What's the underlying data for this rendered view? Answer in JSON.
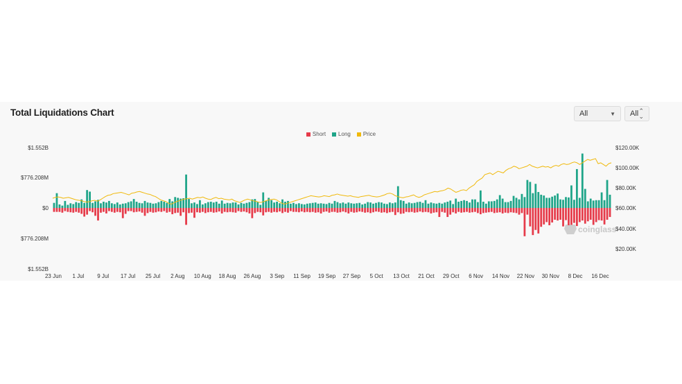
{
  "header": {
    "title": "Total Liquidations Chart",
    "select_range": "All",
    "select_unit": "All"
  },
  "watermark": "coinglass",
  "colors": {
    "short": "#e63b4a",
    "long": "#1fa589",
    "price": "#f0b90b"
  },
  "chart_data": {
    "type": "bar",
    "title": "Total Liquidations Chart",
    "legend": [
      "Short",
      "Long",
      "Price"
    ],
    "legend_position": "top-center",
    "x_tick_labels": [
      "23 Jun",
      "1 Jul",
      "9 Jul",
      "17 Jul",
      "25 Jul",
      "2 Aug",
      "10 Aug",
      "18 Aug",
      "26 Aug",
      "3 Sep",
      "11 Sep",
      "19 Sep",
      "27 Sep",
      "5 Oct",
      "13 Oct",
      "21 Oct",
      "29 Oct",
      "6 Nov",
      "14 Nov",
      "22 Nov",
      "30 Nov",
      "8 Dec",
      "16 Dec"
    ],
    "y_left_tick_labels": [
      "$1.552B",
      "$776.208M",
      "$0",
      "$776.208M",
      "$1.552B"
    ],
    "y_left_range_usd": [
      -1552000000,
      1552000000
    ],
    "y_right_tick_labels": [
      "$120.00K",
      "$100.00K",
      "$80.00K",
      "$60.00K",
      "$40.00K",
      "$20.00K"
    ],
    "y_right_range_usd": [
      0,
      120000
    ],
    "grid": false,
    "series_long_usd": [
      130000000,
      380000000,
      90000000,
      60000000,
      180000000,
      80000000,
      120000000,
      100000000,
      150000000,
      130000000,
      220000000,
      130000000,
      460000000,
      420000000,
      130000000,
      170000000,
      210000000,
      120000000,
      160000000,
      140000000,
      180000000,
      120000000,
      100000000,
      140000000,
      90000000,
      110000000,
      120000000,
      150000000,
      170000000,
      230000000,
      160000000,
      130000000,
      120000000,
      180000000,
      140000000,
      130000000,
      110000000,
      120000000,
      150000000,
      180000000,
      160000000,
      130000000,
      230000000,
      170000000,
      280000000,
      260000000,
      240000000,
      250000000,
      860000000,
      230000000,
      120000000,
      140000000,
      100000000,
      200000000,
      90000000,
      120000000,
      150000000,
      160000000,
      140000000,
      160000000,
      110000000,
      190000000,
      110000000,
      130000000,
      120000000,
      140000000,
      140000000,
      90000000,
      130000000,
      110000000,
      130000000,
      150000000,
      220000000,
      230000000,
      160000000,
      80000000,
      400000000,
      180000000,
      260000000,
      200000000,
      140000000,
      160000000,
      120000000,
      220000000,
      160000000,
      180000000,
      110000000,
      130000000,
      100000000,
      120000000,
      100000000,
      90000000,
      110000000,
      120000000,
      130000000,
      140000000,
      110000000,
      120000000,
      110000000,
      100000000,
      130000000,
      110000000,
      180000000,
      150000000,
      120000000,
      140000000,
      110000000,
      140000000,
      120000000,
      110000000,
      120000000,
      130000000,
      90000000,
      110000000,
      150000000,
      140000000,
      110000000,
      130000000,
      150000000,
      140000000,
      110000000,
      100000000,
      140000000,
      120000000,
      140000000,
      560000000,
      200000000,
      180000000,
      110000000,
      140000000,
      120000000,
      130000000,
      150000000,
      160000000,
      130000000,
      200000000,
      110000000,
      140000000,
      120000000,
      110000000,
      130000000,
      110000000,
      140000000,
      160000000,
      190000000,
      100000000,
      240000000,
      160000000,
      180000000,
      200000000,
      180000000,
      140000000,
      220000000,
      220000000,
      150000000,
      450000000,
      160000000,
      110000000,
      170000000,
      170000000,
      180000000,
      220000000,
      330000000,
      240000000,
      150000000,
      150000000,
      180000000,
      310000000,
      260000000,
      220000000,
      360000000,
      280000000,
      720000000,
      670000000,
      380000000,
      620000000,
      410000000,
      340000000,
      320000000,
      260000000,
      260000000,
      290000000,
      320000000,
      370000000,
      220000000,
      210000000,
      280000000,
      270000000,
      580000000,
      210000000,
      1000000000,
      260000000,
      1400000000,
      490000000,
      170000000,
      240000000,
      190000000,
      200000000,
      200000000,
      400000000,
      200000000,
      720000000,
      340000000
    ],
    "series_short_usd": [
      -100000000,
      -100000000,
      -100000000,
      -120000000,
      -80000000,
      -100000000,
      -110000000,
      -120000000,
      -100000000,
      -120000000,
      -150000000,
      -220000000,
      -170000000,
      -80000000,
      -110000000,
      -200000000,
      -320000000,
      -120000000,
      -100000000,
      -140000000,
      -80000000,
      -100000000,
      -120000000,
      -100000000,
      -110000000,
      -260000000,
      -150000000,
      -80000000,
      -80000000,
      -110000000,
      -100000000,
      -90000000,
      -120000000,
      -200000000,
      -130000000,
      -100000000,
      -120000000,
      -110000000,
      -90000000,
      -100000000,
      -80000000,
      -120000000,
      -100000000,
      -160000000,
      -130000000,
      -120000000,
      -200000000,
      -110000000,
      -430000000,
      -130000000,
      -120000000,
      -250000000,
      -110000000,
      -120000000,
      -100000000,
      -130000000,
      -110000000,
      -100000000,
      -120000000,
      -110000000,
      -90000000,
      -140000000,
      -100000000,
      -110000000,
      -100000000,
      -110000000,
      -120000000,
      -80000000,
      -100000000,
      -90000000,
      -110000000,
      -140000000,
      -260000000,
      -130000000,
      -100000000,
      -110000000,
      -190000000,
      -110000000,
      -100000000,
      -120000000,
      -100000000,
      -110000000,
      -90000000,
      -130000000,
      -100000000,
      -120000000,
      -80000000,
      -100000000,
      -100000000,
      -110000000,
      -90000000,
      -110000000,
      -100000000,
      -110000000,
      -100000000,
      -120000000,
      -110000000,
      -140000000,
      -100000000,
      -90000000,
      -120000000,
      -100000000,
      -100000000,
      -120000000,
      -110000000,
      -90000000,
      -110000000,
      -140000000,
      -100000000,
      -120000000,
      -110000000,
      -90000000,
      -100000000,
      -120000000,
      -110000000,
      -130000000,
      -110000000,
      -90000000,
      -100000000,
      -120000000,
      -110000000,
      -130000000,
      -110000000,
      -100000000,
      -180000000,
      -110000000,
      -150000000,
      -140000000,
      -100000000,
      -110000000,
      -100000000,
      -120000000,
      -110000000,
      -90000000,
      -110000000,
      -100000000,
      -110000000,
      -140000000,
      -120000000,
      -110000000,
      -230000000,
      -100000000,
      -120000000,
      -230000000,
      -170000000,
      -110000000,
      -140000000,
      -100000000,
      -120000000,
      -110000000,
      -100000000,
      -120000000,
      -110000000,
      -100000000,
      -130000000,
      -160000000,
      -130000000,
      -120000000,
      -110000000,
      -100000000,
      -130000000,
      -120000000,
      -110000000,
      -140000000,
      -120000000,
      -130000000,
      -110000000,
      -120000000,
      -130000000,
      -170000000,
      -130000000,
      -720000000,
      -170000000,
      -470000000,
      -690000000,
      -560000000,
      -650000000,
      -480000000,
      -420000000,
      -360000000,
      -440000000,
      -370000000,
      -300000000,
      -320000000,
      -300000000,
      -470000000,
      -310000000,
      -440000000,
      -430000000,
      -380000000,
      -460000000,
      -360000000,
      -320000000,
      -400000000,
      -340000000,
      -300000000,
      -430000000,
      -360000000,
      -310000000,
      -320000000,
      -420000000,
      -300000000,
      -230000000,
      -370000000,
      -300000000,
      -320000000,
      -310000000,
      -400000000,
      -320000000,
      -620000000,
      -290000000,
      -290000000,
      -220000000
    ],
    "price_usd": [
      60000,
      61000,
      61500,
      61000,
      60000,
      60500,
      61000,
      60000,
      59000,
      58000,
      57500,
      57000,
      56000,
      55500,
      56000,
      57000,
      57500,
      56500,
      58000,
      60000,
      62000,
      63500,
      64000,
      65500,
      66000,
      66500,
      67000,
      66000,
      65000,
      64000,
      66000,
      66500,
      67500,
      68000,
      67000,
      66000,
      65000,
      64500,
      63000,
      62000,
      60000,
      58000,
      57000,
      56000,
      54000,
      53000,
      54500,
      56000,
      57000,
      58000,
      59000,
      59500,
      60000,
      59000,
      60000,
      61000,
      60500,
      61500,
      60000,
      59000,
      58500,
      60000,
      61000,
      59500,
      60000,
      59000,
      58500,
      58000,
      59000,
      57000,
      56000,
      55000,
      56500,
      58000,
      59000,
      58000,
      57000,
      56500,
      55500,
      55000,
      56000,
      57000,
      58000,
      58500,
      59000,
      58000,
      56000,
      54000,
      53000,
      54000,
      55000,
      56000,
      57000,
      58000,
      59000,
      60000,
      61000,
      62000,
      63000,
      62500,
      62000,
      61500,
      62000,
      63000,
      62500,
      62000,
      63500,
      64000,
      65000,
      64000,
      63500,
      63000,
      62500,
      63000,
      62000,
      61500,
      61000,
      62000,
      62500,
      63000,
      63500,
      62500,
      62000,
      61500,
      62000,
      63000,
      64000,
      65500,
      66000,
      65000,
      63000,
      62000,
      61000,
      60500,
      61500,
      62000,
      63000,
      64000,
      62000,
      61000,
      62000,
      64000,
      65000,
      66000,
      67000,
      68000,
      67500,
      68500,
      69000,
      70000,
      72000,
      71000,
      69000,
      67000,
      68000,
      69500,
      70000,
      69000,
      72000,
      74000,
      76000,
      80000,
      82000,
      84000,
      88000,
      89000,
      90000,
      88000,
      90000,
      92000,
      91000,
      90000,
      93000,
      95000,
      96000,
      98000,
      97000,
      95000,
      96000,
      97000,
      98000,
      100000,
      98000,
      97000,
      96000,
      97000,
      98000,
      97000,
      97500,
      96000,
      98000,
      99000,
      98000,
      100000,
      101000,
      100000,
      100500,
      102000,
      103000,
      102000,
      100000,
      102000,
      104000,
      106000,
      105000,
      106000,
      107000,
      101000,
      102000,
      100000,
      98000,
      101000,
      102000
    ]
  }
}
